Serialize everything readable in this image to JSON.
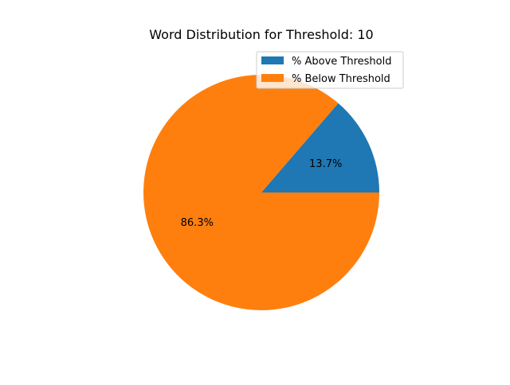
{
  "chart_data": {
    "type": "pie",
    "title": "Word Distribution for Threshold: 10",
    "labels": [
      "% Above Threshold",
      "% Below Threshold"
    ],
    "values": [
      13.7,
      86.3
    ],
    "value_labels": [
      "13.7%",
      "86.3%"
    ],
    "colors": [
      "#1f77b4",
      "#ff7f0e"
    ],
    "legend_position": "upper right",
    "start_angle_deg": 0,
    "direction": "counterclockwise"
  }
}
